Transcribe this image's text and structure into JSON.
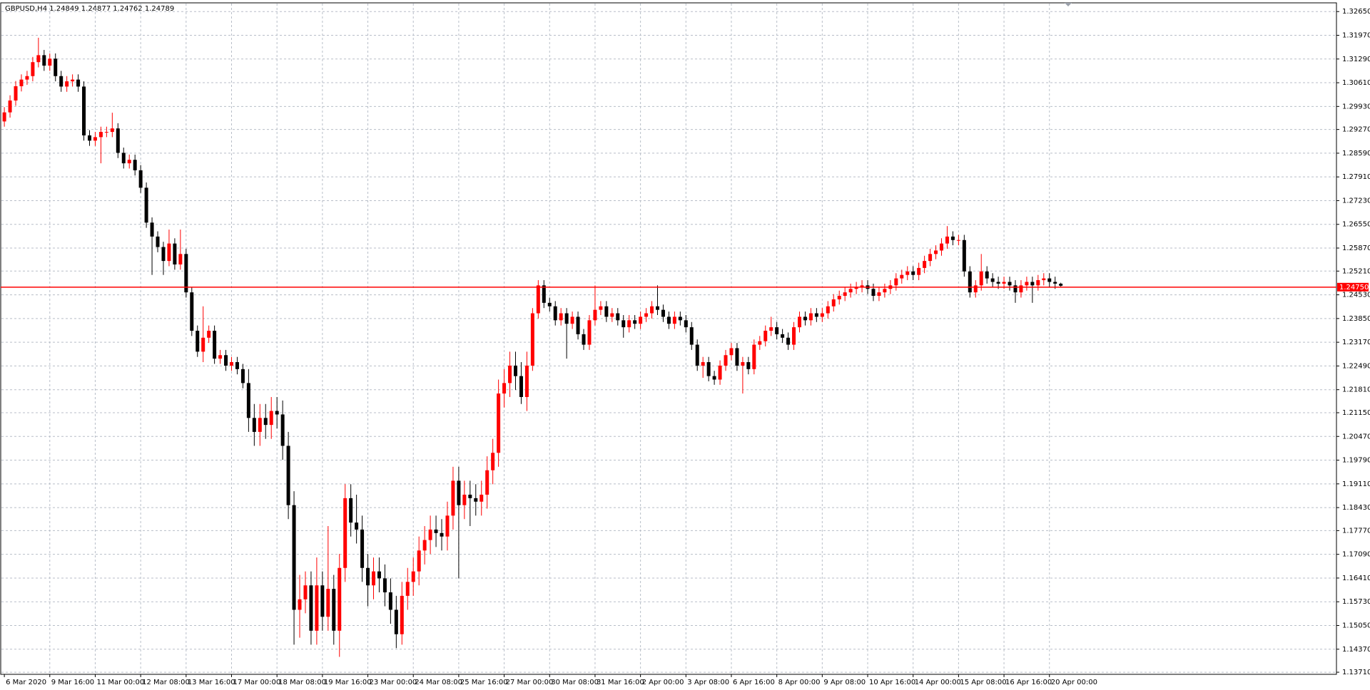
{
  "chart_data": {
    "type": "candlestick",
    "title": "GBPUSD,H4  1.24849 1.24877 1.24762 1.24789",
    "categories": [
      "6 Mar 2020",
      null,
      null,
      null,
      null,
      null,
      null,
      null,
      "9 Mar 16:00",
      null,
      null,
      null,
      null,
      null,
      null,
      null,
      "11 Mar 00:00",
      null,
      null,
      null,
      null,
      null,
      null,
      null,
      "12 Mar 08:00",
      null,
      null,
      null,
      null,
      null,
      null,
      null,
      "13 Mar 16:00",
      null,
      null,
      null,
      null,
      null,
      null,
      null,
      "17 Mar 00:00",
      null,
      null,
      null,
      null,
      null,
      null,
      null,
      "18 Mar 08:00",
      null,
      null,
      null,
      null,
      null,
      null,
      null,
      "19 Mar 16:00",
      null,
      null,
      null,
      null,
      null,
      null,
      null,
      "23 Mar 00:00",
      null,
      null,
      null,
      null,
      null,
      null,
      null,
      "24 Mar 08:00",
      null,
      null,
      null,
      null,
      null,
      null,
      null,
      "25 Mar 16:00",
      null,
      null,
      null,
      null,
      null,
      null,
      null,
      "27 Mar 00:00",
      null,
      null,
      null,
      null,
      null,
      null,
      null,
      "30 Mar 08:00",
      null,
      null,
      null,
      null,
      null,
      null,
      null,
      "31 Mar 16:00",
      null,
      null,
      null,
      null,
      null,
      null,
      null,
      "2 Apr 00:00",
      null,
      null,
      null,
      null,
      null,
      null,
      null,
      "3 Apr 08:00",
      null,
      null,
      null,
      null,
      null,
      null,
      null,
      "6 Apr 16:00",
      null,
      null,
      null,
      null,
      null,
      null,
      null,
      "8 Apr 00:00",
      null,
      null,
      null,
      null,
      null,
      null,
      null,
      "9 Apr 08:00",
      null,
      null,
      null,
      null,
      null,
      null,
      null,
      "10 Apr 16:00",
      null,
      null,
      null,
      null,
      null,
      null,
      null,
      "14 Apr 00:00",
      null,
      null,
      null,
      null,
      null,
      null,
      null,
      "15 Apr 08:00",
      null,
      null,
      null,
      null,
      null,
      null,
      null,
      "16 Apr 16:00",
      null,
      null,
      null,
      null,
      null,
      null,
      null,
      "20 Apr 00:00",
      null,
      null
    ],
    "open": [
      1.295,
      1.2976,
      1.301,
      1.3051,
      1.307,
      1.308,
      1.312,
      1.314,
      1.311,
      1.313,
      1.308,
      1.305,
      1.3065,
      1.307,
      1.305,
      1.291,
      1.2895,
      1.2905,
      1.292,
      1.292,
      1.293,
      1.286,
      1.283,
      1.284,
      1.281,
      1.276,
      1.266,
      1.262,
      1.259,
      1.255,
      1.26,
      1.254,
      1.257,
      1.246,
      1.235,
      1.229,
      1.233,
      1.235,
      1.227,
      1.228,
      1.225,
      1.226,
      1.224,
      1.22,
      1.21,
      1.206,
      1.21,
      1.208,
      1.212,
      1.211,
      1.202,
      1.185,
      1.155,
      1.158,
      1.162,
      1.149,
      1.162,
      1.153,
      1.161,
      1.149,
      1.167,
      1.187,
      1.18,
      1.178,
      1.167,
      1.162,
      1.166,
      1.164,
      1.16,
      1.155,
      1.148,
      1.159,
      1.163,
      1.166,
      1.172,
      1.175,
      1.178,
      1.177,
      1.176,
      1.182,
      1.192,
      1.185,
      1.188,
      1.187,
      1.186,
      1.188,
      1.195,
      1.2,
      1.217,
      1.22,
      1.225,
      1.222,
      1.216,
      1.225,
      1.24,
      1.248,
      1.243,
      1.242,
      1.238,
      1.24,
      1.237,
      1.239,
      1.234,
      1.231,
      1.238,
      1.241,
      1.242,
      1.239,
      1.24,
      1.238,
      1.236,
      1.238,
      1.237,
      1.239,
      1.24,
      1.242,
      1.241,
      1.239,
      1.237,
      1.239,
      1.238,
      1.236,
      1.231,
      1.225,
      1.226,
      1.222,
      1.221,
      1.225,
      1.228,
      1.23,
      1.225,
      1.226,
      1.224,
      1.231,
      1.232,
      1.235,
      1.236,
      1.234,
      1.233,
      1.231,
      1.236,
      1.239,
      1.238,
      1.24,
      1.239,
      1.24,
      1.242,
      1.244,
      1.245,
      1.246,
      1.247,
      1.2475,
      1.248,
      1.247,
      1.245,
      1.246,
      1.247,
      1.248,
      1.25,
      1.251,
      1.252,
      1.251,
      1.253,
      1.255,
      1.257,
      1.258,
      1.26,
      1.262,
      1.261,
      1.261,
      1.252,
      1.246,
      1.248,
      1.252,
      1.25,
      1.249,
      1.2485,
      1.249,
      1.248,
      1.246,
      1.248,
      1.249,
      1.248,
      1.2495,
      1.25,
      1.249,
      1.24849
    ],
    "high": [
      1.2991,
      1.3025,
      1.3066,
      1.3085,
      1.3095,
      1.3135,
      1.319,
      1.3155,
      1.3145,
      1.3145,
      1.3095,
      1.308,
      1.3085,
      1.3085,
      1.3065,
      1.2925,
      1.292,
      1.2935,
      1.2935,
      1.2975,
      1.2945,
      1.2875,
      1.2855,
      1.2855,
      1.2825,
      1.2775,
      1.2675,
      1.2635,
      1.2605,
      1.264,
      1.2615,
      1.264,
      1.2585,
      1.2475,
      1.2365,
      1.242,
      1.2365,
      1.2365,
      1.2295,
      1.2295,
      1.2275,
      1.2275,
      1.2255,
      1.224,
      1.214,
      1.214,
      1.214,
      1.216,
      1.216,
      1.215,
      1.206,
      1.189,
      1.165,
      1.166,
      1.166,
      1.17,
      1.166,
      1.179,
      1.165,
      1.171,
      1.191,
      1.191,
      1.188,
      1.182,
      1.171,
      1.17,
      1.17,
      1.168,
      1.164,
      1.159,
      1.163,
      1.167,
      1.17,
      1.176,
      1.179,
      1.182,
      1.182,
      1.181,
      1.186,
      1.196,
      1.196,
      1.192,
      1.192,
      1.191,
      1.192,
      1.199,
      1.204,
      1.221,
      1.224,
      1.229,
      1.229,
      1.226,
      1.229,
      1.2415,
      1.2495,
      1.2495,
      1.2445,
      1.2435,
      1.2415,
      1.2415,
      1.2405,
      1.2405,
      1.2355,
      1.2395,
      1.248,
      1.2435,
      1.2435,
      1.2415,
      1.2415,
      1.2395,
      1.2395,
      1.2395,
      1.2405,
      1.2415,
      1.2435,
      1.248,
      1.2425,
      1.2405,
      1.2405,
      1.2405,
      1.2395,
      1.2375,
      1.2325,
      1.2275,
      1.2275,
      1.2235,
      1.2265,
      1.2295,
      1.2315,
      1.2315,
      1.2275,
      1.2275,
      1.2325,
      1.2335,
      1.2365,
      1.239,
      1.2375,
      1.2355,
      1.2345,
      1.2375,
      1.2405,
      1.2405,
      1.2415,
      1.2415,
      1.2415,
      1.2435,
      1.2455,
      1.2465,
      1.2475,
      1.2485,
      1.249,
      1.2495,
      1.2495,
      1.2485,
      1.2475,
      1.2485,
      1.2495,
      1.2515,
      1.2525,
      1.2535,
      1.2535,
      1.2545,
      1.2565,
      1.2585,
      1.2595,
      1.2615,
      1.265,
      1.2635,
      1.2625,
      1.2625,
      1.2535,
      1.2495,
      1.257,
      1.2535,
      1.2515,
      1.2505,
      1.2505,
      1.2505,
      1.2495,
      1.2495,
      1.2505,
      1.2505,
      1.251,
      1.2515,
      1.2515,
      1.2505,
      1.24877
    ],
    "low": [
      1.2935,
      1.2961,
      1.2995,
      1.3036,
      1.3055,
      1.3065,
      1.3105,
      1.3095,
      1.3095,
      1.3065,
      1.3035,
      1.3035,
      1.305,
      1.3035,
      1.2895,
      1.288,
      1.288,
      1.283,
      1.2905,
      1.2905,
      1.2845,
      1.2815,
      1.2815,
      1.2795,
      1.2745,
      1.2645,
      1.251,
      1.2575,
      1.251,
      1.2535,
      1.2525,
      1.2525,
      1.2445,
      1.2335,
      1.2275,
      1.226,
      1.2315,
      1.2255,
      1.2255,
      1.2235,
      1.2235,
      1.2225,
      1.2185,
      1.206,
      1.202,
      1.202,
      1.204,
      1.204,
      1.207,
      1.198,
      1.181,
      1.145,
      1.147,
      1.154,
      1.145,
      1.145,
      1.149,
      1.149,
      1.145,
      1.1415,
      1.163,
      1.176,
      1.174,
      1.163,
      1.156,
      1.158,
      1.16,
      1.156,
      1.151,
      1.144,
      1.145,
      1.155,
      1.159,
      1.162,
      1.168,
      1.171,
      1.173,
      1.172,
      1.172,
      1.178,
      1.164,
      1.181,
      1.179,
      1.182,
      1.182,
      1.184,
      1.191,
      1.196,
      1.213,
      1.216,
      1.218,
      1.214,
      1.212,
      1.2235,
      1.2385,
      1.2415,
      1.2405,
      1.2365,
      1.2365,
      1.227,
      1.2355,
      1.2325,
      1.2295,
      1.2295,
      1.2365,
      1.2395,
      1.2375,
      1.2375,
      1.2365,
      1.233,
      1.2345,
      1.2355,
      1.2355,
      1.2375,
      1.2385,
      1.2395,
      1.2375,
      1.2355,
      1.2355,
      1.2365,
      1.2345,
      1.2295,
      1.2235,
      1.2215,
      1.2205,
      1.2195,
      1.2195,
      1.2235,
      1.2265,
      1.2235,
      1.217,
      1.2225,
      1.2225,
      1.2295,
      1.2305,
      1.2335,
      1.2325,
      1.2315,
      1.2295,
      1.2295,
      1.2345,
      1.2365,
      1.2365,
      1.2375,
      1.2375,
      1.2385,
      1.2405,
      1.2425,
      1.2435,
      1.2445,
      1.2455,
      1.246,
      1.2455,
      1.2435,
      1.2435,
      1.2445,
      1.2455,
      1.2465,
      1.2485,
      1.2495,
      1.2495,
      1.2495,
      1.2515,
      1.2535,
      1.2555,
      1.2565,
      1.2585,
      1.2595,
      1.2595,
      1.2505,
      1.2445,
      1.2445,
      1.2465,
      1.2485,
      1.2475,
      1.247,
      1.247,
      1.2465,
      1.243,
      1.2445,
      1.2465,
      1.243,
      1.2465,
      1.248,
      1.2475,
      1.247,
      1.24762
    ],
    "close": [
      1.2976,
      1.301,
      1.3051,
      1.307,
      1.308,
      1.312,
      1.314,
      1.311,
      1.313,
      1.308,
      1.305,
      1.3065,
      1.307,
      1.305,
      1.291,
      1.2895,
      1.2905,
      1.292,
      1.292,
      1.293,
      1.286,
      1.283,
      1.284,
      1.281,
      1.276,
      1.266,
      1.262,
      1.259,
      1.255,
      1.26,
      1.254,
      1.257,
      1.246,
      1.235,
      1.229,
      1.233,
      1.235,
      1.227,
      1.228,
      1.225,
      1.226,
      1.224,
      1.22,
      1.21,
      1.206,
      1.21,
      1.208,
      1.212,
      1.211,
      1.202,
      1.185,
      1.155,
      1.158,
      1.162,
      1.149,
      1.162,
      1.153,
      1.161,
      1.149,
      1.167,
      1.187,
      1.18,
      1.178,
      1.167,
      1.162,
      1.166,
      1.164,
      1.16,
      1.155,
      1.148,
      1.159,
      1.163,
      1.166,
      1.172,
      1.175,
      1.178,
      1.177,
      1.176,
      1.182,
      1.192,
      1.185,
      1.188,
      1.187,
      1.186,
      1.188,
      1.195,
      1.2,
      1.217,
      1.22,
      1.225,
      1.222,
      1.216,
      1.225,
      1.24,
      1.248,
      1.243,
      1.242,
      1.238,
      1.24,
      1.237,
      1.239,
      1.234,
      1.231,
      1.238,
      1.241,
      1.242,
      1.239,
      1.24,
      1.238,
      1.236,
      1.238,
      1.237,
      1.239,
      1.24,
      1.242,
      1.241,
      1.239,
      1.237,
      1.239,
      1.238,
      1.236,
      1.231,
      1.225,
      1.226,
      1.222,
      1.221,
      1.225,
      1.228,
      1.23,
      1.225,
      1.226,
      1.224,
      1.231,
      1.232,
      1.235,
      1.236,
      1.234,
      1.233,
      1.231,
      1.236,
      1.239,
      1.238,
      1.24,
      1.239,
      1.24,
      1.242,
      1.244,
      1.245,
      1.246,
      1.247,
      1.2475,
      1.248,
      1.247,
      1.245,
      1.246,
      1.247,
      1.248,
      1.25,
      1.251,
      1.252,
      1.251,
      1.253,
      1.255,
      1.257,
      1.258,
      1.26,
      1.262,
      1.261,
      1.261,
      1.252,
      1.246,
      1.248,
      1.252,
      1.25,
      1.249,
      1.2485,
      1.249,
      1.248,
      1.246,
      1.248,
      1.249,
      1.248,
      1.2495,
      1.25,
      1.249,
      1.2485,
      1.24789
    ],
    "up_color": "#ff0000",
    "down_color": "#000000",
    "ylim": [
      1.1365,
      1.329
    ],
    "yticks": [
      {
        "value": 1.3265,
        "label": "1.32650"
      },
      {
        "value": 1.3197,
        "label": "1.31970"
      },
      {
        "value": 1.3129,
        "label": "1.31290"
      },
      {
        "value": 1.3061,
        "label": "1.30610"
      },
      {
        "value": 1.2993,
        "label": "1.29930"
      },
      {
        "value": 1.2927,
        "label": "1.29270"
      },
      {
        "value": 1.2859,
        "label": "1.28590"
      },
      {
        "value": 1.2791,
        "label": "1.27910"
      },
      {
        "value": 1.2723,
        "label": "1.27230"
      },
      {
        "value": 1.2655,
        "label": "1.26550"
      },
      {
        "value": 1.2587,
        "label": "1.25870"
      },
      {
        "value": 1.2521,
        "label": "1.25210"
      },
      {
        "value": 1.2453,
        "label": "1.24530"
      },
      {
        "value": 1.2385,
        "label": "1.23850"
      },
      {
        "value": 1.2317,
        "label": "1.23170"
      },
      {
        "value": 1.2249,
        "label": "1.22490"
      },
      {
        "value": 1.2181,
        "label": "1.21810"
      },
      {
        "value": 1.2115,
        "label": "1.21150"
      },
      {
        "value": 1.2047,
        "label": "1.20470"
      },
      {
        "value": 1.1979,
        "label": "1.19790"
      },
      {
        "value": 1.1911,
        "label": "1.19110"
      },
      {
        "value": 1.1843,
        "label": "1.18430"
      },
      {
        "value": 1.1777,
        "label": "1.17770"
      },
      {
        "value": 1.1709,
        "label": "1.17090"
      },
      {
        "value": 1.1641,
        "label": "1.16410"
      },
      {
        "value": 1.1573,
        "label": "1.15730"
      },
      {
        "value": 1.1505,
        "label": "1.15050"
      },
      {
        "value": 1.1437,
        "label": "1.14370"
      },
      {
        "value": 1.1371,
        "label": "1.13710"
      }
    ],
    "grid": true,
    "price_line": {
      "value": 1.2475,
      "label": "1.24750",
      "color": "#ff0000"
    }
  }
}
